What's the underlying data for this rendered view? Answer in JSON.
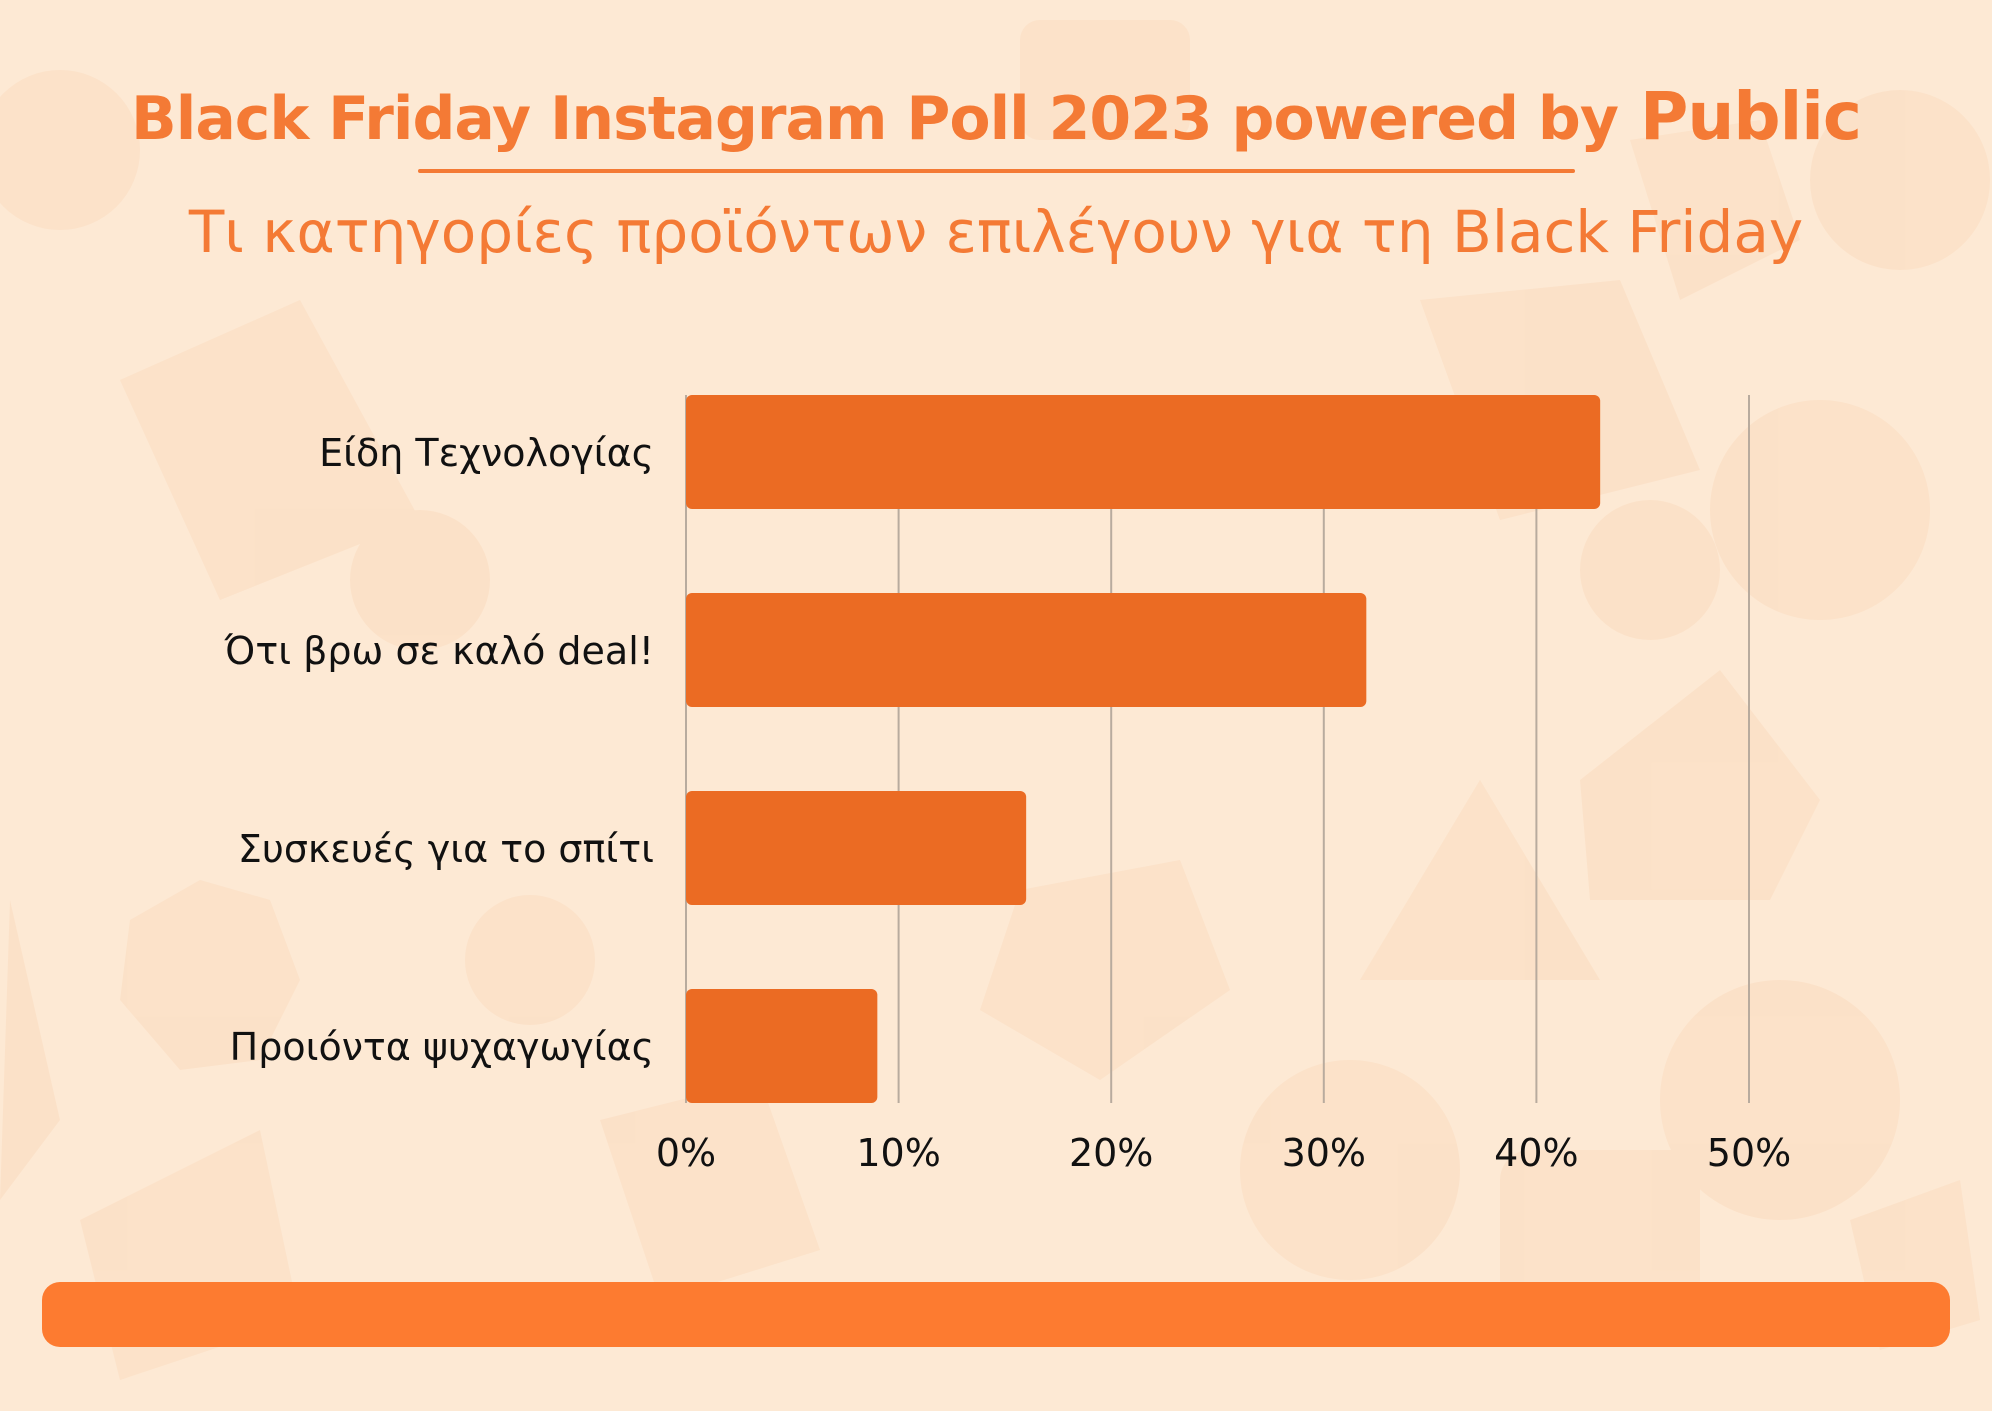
{
  "header": {
    "title": "Black Friday Instagram Poll 2023 powered by",
    "brand": "Public",
    "subtitle": "Τι κατηγορίες προϊόντων επιλέγουν για τη Black Friday"
  },
  "colors": {
    "accent": "#f47a35",
    "bar": "#eb6b23",
    "background": "#fde9d4",
    "footer_bar": "#fd7b30",
    "grid": "#b8ab9e",
    "text": "#111111"
  },
  "chart_data": {
    "type": "bar",
    "orientation": "horizontal",
    "title": "Τι κατηγορίες προϊόντων επιλέγουν για τη Black Friday",
    "xlabel": "",
    "ylabel": "",
    "categories": [
      "Είδη Τεχνολογίας",
      "Ότι βρω σε καλό deal!",
      "Συσκευές για το σπίτι",
      "Προιόντα ψυχαγωγίας"
    ],
    "values": [
      43,
      32,
      16,
      9
    ],
    "value_unit": "%",
    "xlim": [
      0,
      50
    ],
    "x_ticks": [
      0,
      10,
      20,
      30,
      40,
      50
    ],
    "x_tick_labels": [
      "0%",
      "10%",
      "20%",
      "30%",
      "40%",
      "50%"
    ],
    "grid": true,
    "legend": "none"
  }
}
